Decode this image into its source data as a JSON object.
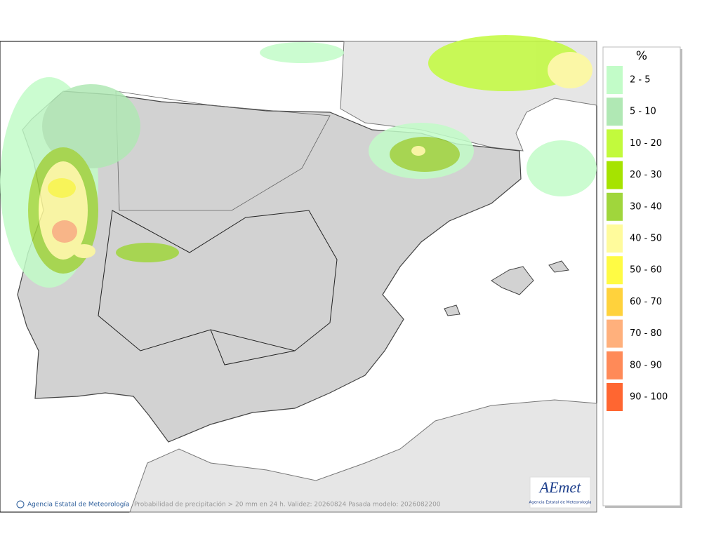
{
  "legend": {
    "title": "%",
    "entries": [
      {
        "label": "2 - 5",
        "color": "#c2fcc8"
      },
      {
        "label": "5 - 10",
        "color": "#b0e8b4"
      },
      {
        "label": "10 - 20",
        "color": "#c2fa3c"
      },
      {
        "label": "20 - 30",
        "color": "#a6e300"
      },
      {
        "label": "30 - 40",
        "color": "#a0d63c"
      },
      {
        "label": "40 - 50",
        "color": "#fffb9c"
      },
      {
        "label": "50 - 60",
        "color": "#fffb44"
      },
      {
        "label": "60 - 70",
        "color": "#ffd23c"
      },
      {
        "label": "70 - 80",
        "color": "#ffb07c"
      },
      {
        "label": "80 - 90",
        "color": "#ff8a58"
      },
      {
        "label": "90 - 100",
        "color": "#ff6631"
      }
    ]
  },
  "footer": {
    "credit": "Agencia Estatal de Meteorología",
    "caption": "Probabilidad de precipitación > 20 mm en 24 h. Validez: 20260824 Pasada modelo: 2026082200"
  },
  "logo": {
    "name": "AEmet",
    "subtitle": "Agencia Estatal de Meteorología"
  }
}
